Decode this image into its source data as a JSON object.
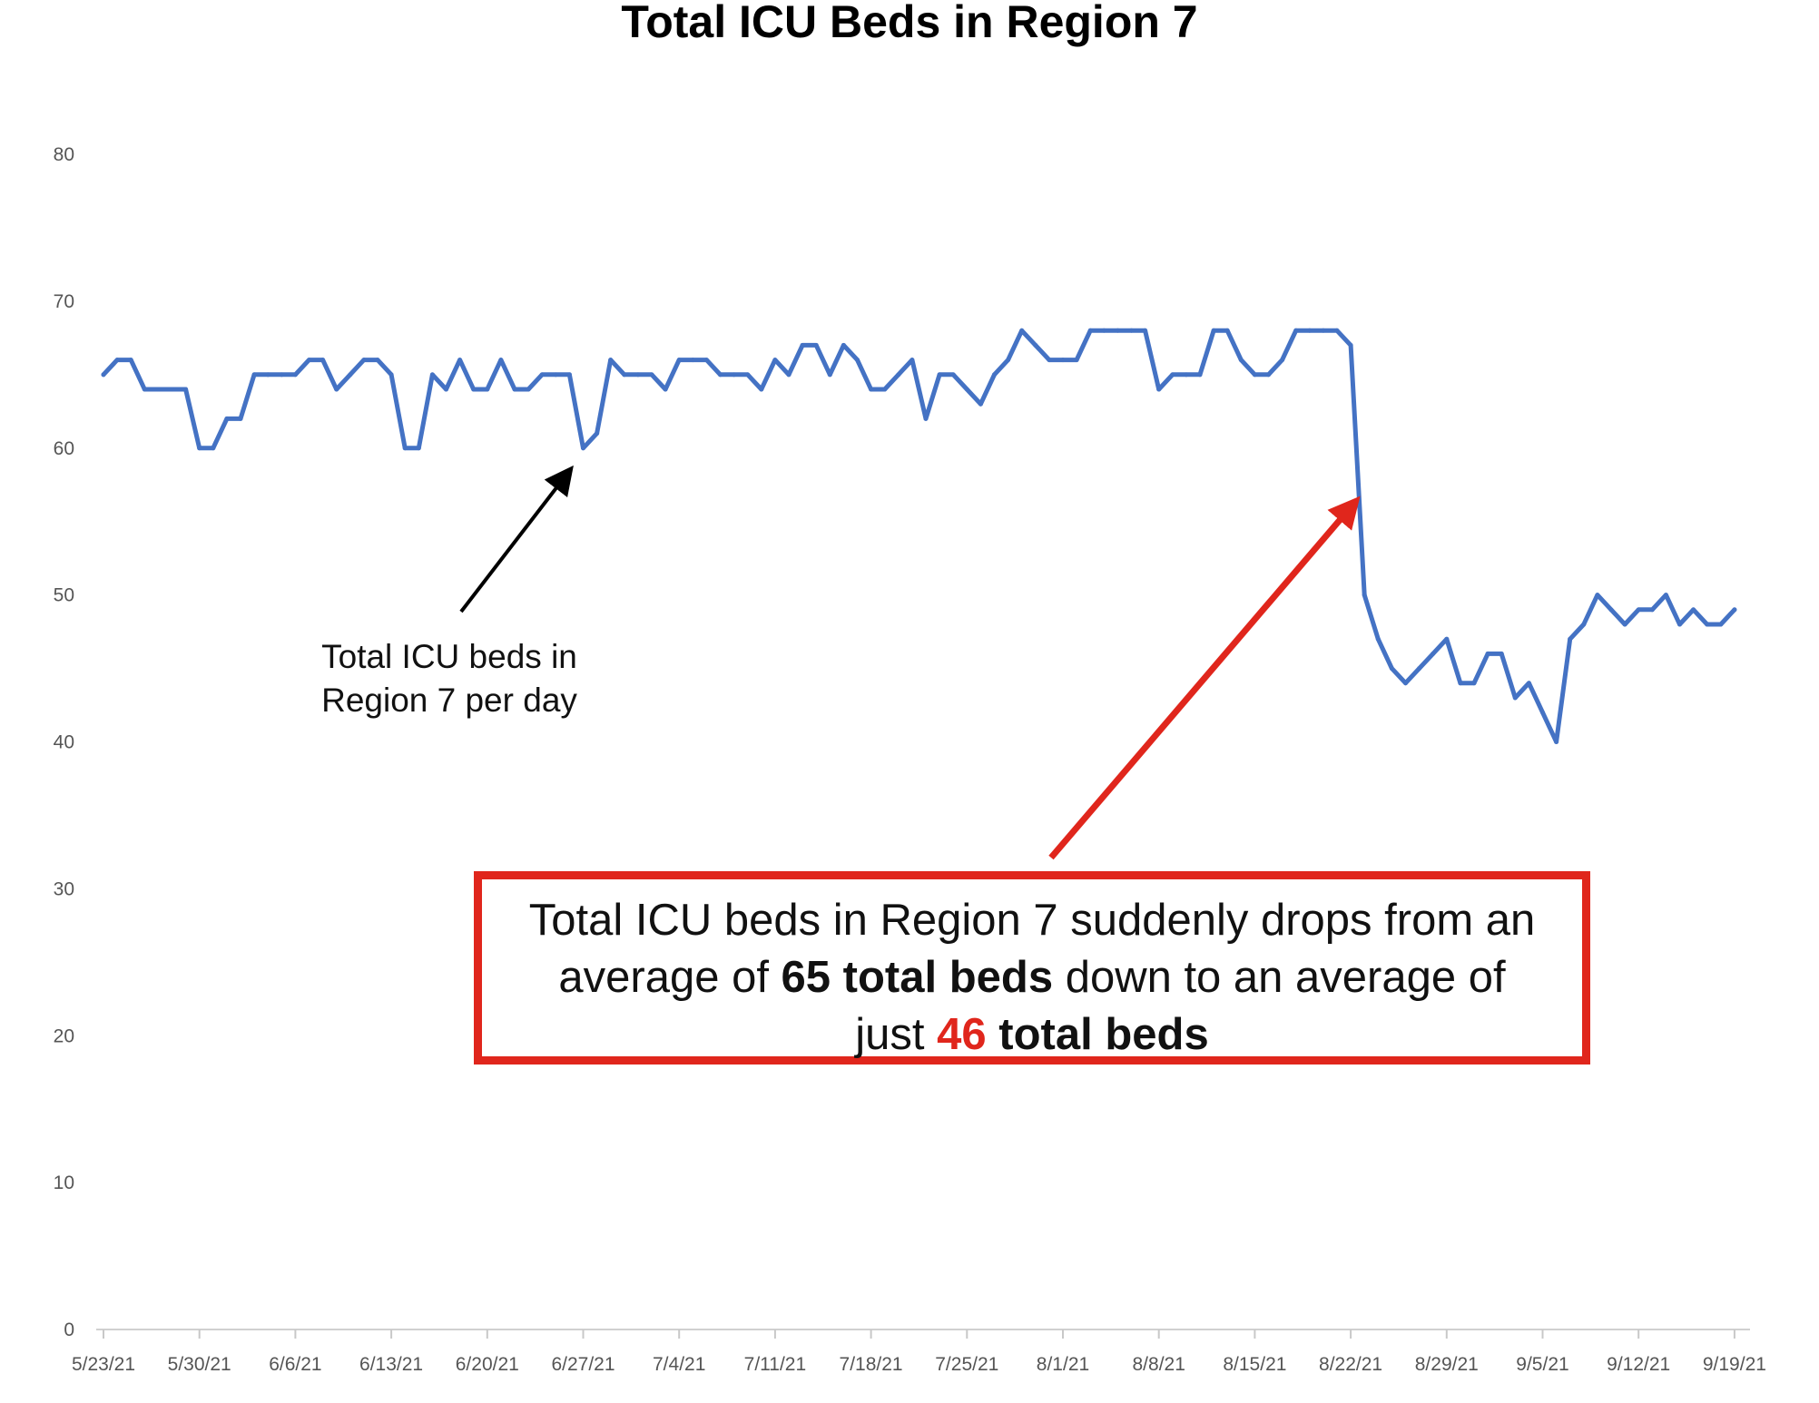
{
  "chart_data": {
    "type": "line",
    "title": "Total ICU Beds in Region 7",
    "xlabel": "",
    "ylabel": "",
    "ylim": [
      0,
      80
    ],
    "yticks": [
      0,
      10,
      20,
      30,
      40,
      50,
      60,
      70,
      80
    ],
    "x_tick_labels": [
      "5/23/21",
      "5/30/21",
      "6/6/21",
      "6/13/21",
      "6/20/21",
      "6/27/21",
      "7/4/21",
      "7/11/21",
      "7/18/21",
      "7/25/21",
      "8/1/21",
      "8/8/21",
      "8/15/21",
      "8/22/21",
      "8/29/21",
      "9/5/21",
      "9/12/21",
      "9/19/21"
    ],
    "grid": false,
    "legend": "none",
    "line_color": "#4472c4",
    "series": [
      {
        "start_date": "2021-05-23",
        "values": [
          65,
          66,
          66,
          64,
          64,
          64,
          64,
          60,
          60,
          62,
          62,
          65,
          65,
          65,
          65,
          66,
          66,
          64,
          65,
          66,
          66,
          65,
          60,
          60,
          65,
          64,
          66,
          64,
          64,
          66,
          64,
          64,
          65,
          65,
          65,
          60,
          61,
          66,
          65,
          65,
          65,
          64,
          66,
          66,
          66,
          65,
          65,
          65,
          64,
          66,
          65,
          67,
          67,
          65,
          67,
          66,
          64,
          64,
          65,
          66,
          62,
          65,
          65,
          64,
          63,
          65,
          66,
          68,
          67,
          66,
          66,
          66,
          68,
          68,
          68,
          68,
          68,
          64,
          65,
          65,
          65,
          68,
          68,
          66,
          65,
          65,
          66,
          68,
          68,
          68,
          68,
          67,
          50,
          47,
          45,
          44,
          45,
          46,
          47,
          44,
          44,
          46,
          46,
          43,
          44,
          42,
          40,
          47,
          48,
          50,
          49,
          48,
          49,
          49,
          50,
          48,
          49,
          48,
          48,
          49
        ]
      }
    ],
    "annotations": {
      "small_note": [
        "Total ICU beds in",
        "Region 7 per day"
      ],
      "callout_line1": "Total ICU beds in Region 7 suddenly drops from an",
      "callout_line2_a": "average of ",
      "callout_line2_b": "65 total beds",
      "callout_line2_c": " down to an average of",
      "callout_line3_a": "just ",
      "callout_line3_b": "46",
      "callout_line3_c": " total beds",
      "arrow_colors": {
        "small": "#000000",
        "callout": "#e0261c"
      }
    }
  }
}
